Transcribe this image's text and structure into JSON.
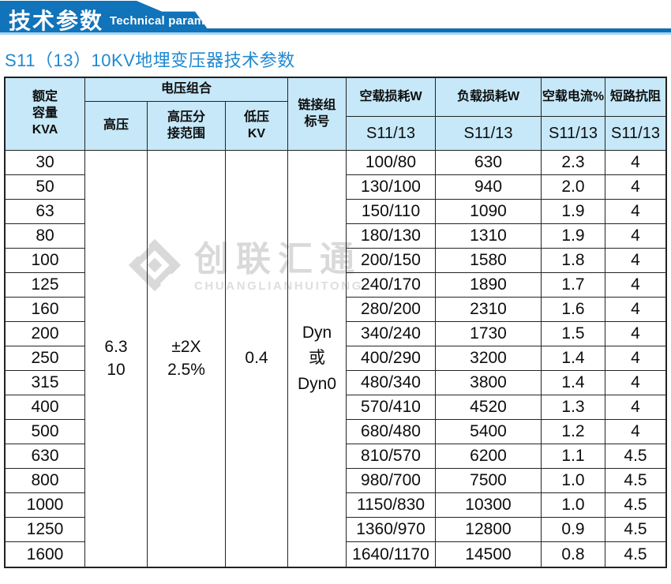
{
  "banner": {
    "title": "技术参数",
    "subtitle": "Technical parameter"
  },
  "heading": "S11（13）10KV地埋变压器技术参数",
  "watermark": {
    "name_cn": "创联汇通",
    "name_en": "CHUANGLIANHUITONG"
  },
  "colors": {
    "banner_blue": "#1173b9",
    "stripe_dark": "#0f6fb4",
    "stripe_light": "#a6d4ee",
    "heading_blue": "#1e89d2",
    "header_bg": "#c6e8f8",
    "border": "#242424",
    "watermark_gray": "#d9d9d9"
  },
  "table": {
    "header": {
      "rated_capacity": "额定\n容量\nKVA",
      "voltage_group": "电压组合",
      "high_voltage": "高压",
      "hv_tap_range": "高压分\n接范围",
      "low_voltage": "低压\nKV",
      "vector_group": "链接组\n标号",
      "no_load_loss": "空载损耗W",
      "load_loss": "负载损耗W",
      "no_load_current": "空载电流%",
      "impedance": "短路抗阻",
      "model": "S11/13"
    },
    "merged": {
      "high_voltage": "6.3\n10",
      "hv_tap_range": "±2X\n2.5%",
      "low_voltage": "0.4",
      "vector_group": "Dyn\n或\nDyn0"
    },
    "rows": [
      {
        "kva": "30",
        "no_load_loss": "100/80",
        "load_loss": "630",
        "no_load_current": "2.3",
        "impedance": "4"
      },
      {
        "kva": "50",
        "no_load_loss": "130/100",
        "load_loss": "940",
        "no_load_current": "2.0",
        "impedance": "4"
      },
      {
        "kva": "63",
        "no_load_loss": "150/110",
        "load_loss": "1090",
        "no_load_current": "1.9",
        "impedance": "4"
      },
      {
        "kva": "80",
        "no_load_loss": "180/130",
        "load_loss": "1310",
        "no_load_current": "1.9",
        "impedance": "4"
      },
      {
        "kva": "100",
        "no_load_loss": "200/150",
        "load_loss": "1580",
        "no_load_current": "1.8",
        "impedance": "4"
      },
      {
        "kva": "125",
        "no_load_loss": "240/170",
        "load_loss": "1890",
        "no_load_current": "1.7",
        "impedance": "4"
      },
      {
        "kva": "160",
        "no_load_loss": "280/200",
        "load_loss": "2310",
        "no_load_current": "1.6",
        "impedance": "4"
      },
      {
        "kva": "200",
        "no_load_loss": "340/240",
        "load_loss": "1730",
        "no_load_current": "1.5",
        "impedance": "4"
      },
      {
        "kva": "250",
        "no_load_loss": "400/290",
        "load_loss": "3200",
        "no_load_current": "1.4",
        "impedance": "4"
      },
      {
        "kva": "315",
        "no_load_loss": "480/340",
        "load_loss": "3800",
        "no_load_current": "1.4",
        "impedance": "4"
      },
      {
        "kva": "400",
        "no_load_loss": "570/410",
        "load_loss": "4520",
        "no_load_current": "1.3",
        "impedance": "4"
      },
      {
        "kva": "500",
        "no_load_loss": "680/480",
        "load_loss": "5400",
        "no_load_current": "1.2",
        "impedance": "4"
      },
      {
        "kva": "630",
        "no_load_loss": "810/570",
        "load_loss": "6200",
        "no_load_current": "1.1",
        "impedance": "4.5"
      },
      {
        "kva": "800",
        "no_load_loss": "980/700",
        "load_loss": "7500",
        "no_load_current": "1.0",
        "impedance": "4.5"
      },
      {
        "kva": "1000",
        "no_load_loss": "1150/830",
        "load_loss": "10300",
        "no_load_current": "1.0",
        "impedance": "4.5"
      },
      {
        "kva": "1250",
        "no_load_loss": "1360/970",
        "load_loss": "12800",
        "no_load_current": "0.9",
        "impedance": "4.5"
      },
      {
        "kva": "1600",
        "no_load_loss": "1640/1170",
        "load_loss": "14500",
        "no_load_current": "0.8",
        "impedance": "4.5"
      }
    ]
  }
}
